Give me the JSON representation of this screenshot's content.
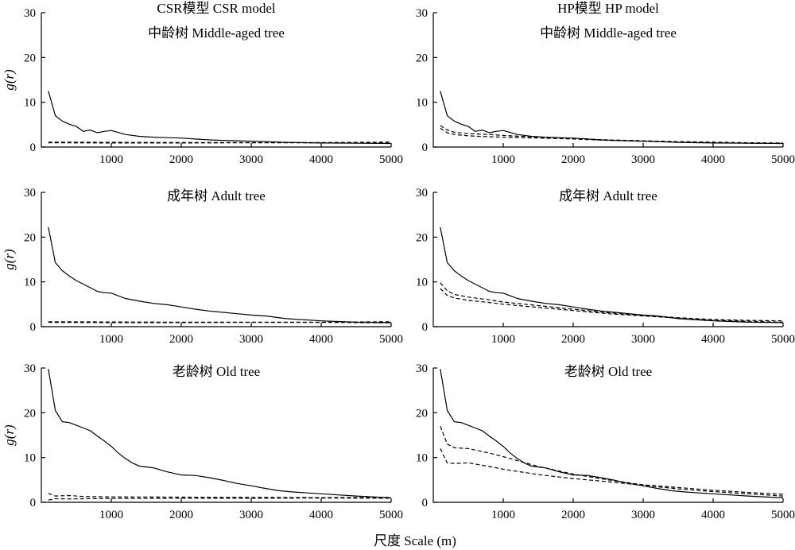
{
  "figure": {
    "xlabel": "尺度 Scale (m)"
  },
  "chart_data": [
    {
      "type": "line",
      "title": "CSR模型 CSR model",
      "subtitle": "中龄树 Middle-aged tree",
      "ylabel": "g(r)",
      "xlim": [
        0,
        5000
      ],
      "ylim": [
        0,
        30
      ],
      "xticks": [
        1000,
        2000,
        3000,
        4000,
        5000
      ],
      "yticks": [
        0,
        10,
        20,
        30
      ],
      "series": [
        {
          "style": "solid",
          "x": [
            100,
            200,
            300,
            400,
            500,
            600,
            700,
            800,
            900,
            1000,
            1200,
            1400,
            1600,
            1800,
            2000,
            2200,
            2400,
            2600,
            2800,
            3000,
            3200,
            3500,
            4000,
            4500,
            5000
          ],
          "y": [
            12.5,
            7,
            5.8,
            5.1,
            4.6,
            3.5,
            3.8,
            3.2,
            3.5,
            3.7,
            2.8,
            2.4,
            2.2,
            2.1,
            2.0,
            1.8,
            1.6,
            1.5,
            1.4,
            1.3,
            1.2,
            1.05,
            0.9,
            0.85,
            0.8
          ]
        },
        {
          "style": "dashed",
          "x": [
            100,
            1000,
            2000,
            3000,
            4000,
            5000
          ],
          "y": [
            1.1,
            1.05,
            1.0,
            1.0,
            1.0,
            1.1
          ]
        },
        {
          "style": "dashed",
          "x": [
            100,
            1000,
            2000,
            3000,
            4000,
            5000
          ],
          "y": [
            0.95,
            0.9,
            0.9,
            0.95,
            0.95,
            0.85
          ]
        }
      ]
    },
    {
      "type": "line",
      "title": "HP模型 HP model",
      "subtitle": "中龄树 Middle-aged tree",
      "ylabel": "",
      "xlim": [
        0,
        5000
      ],
      "ylim": [
        0,
        30
      ],
      "xticks": [
        1000,
        2000,
        3000,
        4000,
        5000
      ],
      "yticks": [
        0,
        10,
        20,
        30
      ],
      "series": [
        {
          "style": "solid",
          "x": [
            100,
            200,
            300,
            400,
            500,
            600,
            700,
            800,
            900,
            1000,
            1200,
            1400,
            1600,
            1800,
            2000,
            2200,
            2400,
            2600,
            2800,
            3000,
            3200,
            3500,
            4000,
            4500,
            5000
          ],
          "y": [
            12.5,
            7,
            5.8,
            5.1,
            4.6,
            3.5,
            3.8,
            3.2,
            3.5,
            3.7,
            2.8,
            2.4,
            2.2,
            2.1,
            2.0,
            1.8,
            1.6,
            1.5,
            1.4,
            1.3,
            1.2,
            1.05,
            0.9,
            0.85,
            0.8
          ]
        },
        {
          "style": "dashed",
          "x": [
            100,
            200,
            300,
            500,
            800,
            1000,
            1500,
            2000,
            2500,
            3000,
            3500,
            4000,
            4500,
            5000
          ],
          "y": [
            4.8,
            3.8,
            3.3,
            3.0,
            2.8,
            2.6,
            2.2,
            1.9,
            1.6,
            1.4,
            1.2,
            1.1,
            0.95,
            0.9
          ]
        },
        {
          "style": "dashed",
          "x": [
            100,
            200,
            300,
            500,
            800,
            1000,
            1500,
            2000,
            2500,
            3000,
            3500,
            4000,
            4500,
            5000
          ],
          "y": [
            4.2,
            3.2,
            2.8,
            2.5,
            2.3,
            2.2,
            2.0,
            1.8,
            1.5,
            1.3,
            1.1,
            1.0,
            0.85,
            0.8
          ]
        }
      ]
    },
    {
      "type": "line",
      "title": "",
      "subtitle": "成年树 Adult tree",
      "ylabel": "g(r)",
      "xlim": [
        0,
        5000
      ],
      "ylim": [
        0,
        30
      ],
      "xticks": [
        1000,
        2000,
        3000,
        4000,
        5000
      ],
      "yticks": [
        0,
        10,
        20,
        30
      ],
      "series": [
        {
          "style": "solid",
          "x": [
            100,
            200,
            300,
            400,
            500,
            600,
            700,
            800,
            900,
            1000,
            1200,
            1400,
            1600,
            1800,
            2000,
            2200,
            2400,
            2600,
            2800,
            3000,
            3200,
            3500,
            4000,
            4500,
            5000
          ],
          "y": [
            22.2,
            14.3,
            12.5,
            11.3,
            10.3,
            9.5,
            8.7,
            7.9,
            7.6,
            7.5,
            6.3,
            5.7,
            5.2,
            4.9,
            4.4,
            3.9,
            3.5,
            3.2,
            2.9,
            2.6,
            2.4,
            1.8,
            1.3,
            1.0,
            0.9
          ]
        },
        {
          "style": "dashed",
          "x": [
            100,
            1000,
            2000,
            3000,
            4000,
            5000
          ],
          "y": [
            1.1,
            1.05,
            1.0,
            1.0,
            1.0,
            1.1
          ]
        },
        {
          "style": "dashed",
          "x": [
            100,
            1000,
            2000,
            3000,
            4000,
            5000
          ],
          "y": [
            0.95,
            0.9,
            0.9,
            0.95,
            0.95,
            0.85
          ]
        }
      ]
    },
    {
      "type": "line",
      "title": "",
      "subtitle": "成年树 Adult tree",
      "ylabel": "",
      "xlim": [
        0,
        5000
      ],
      "ylim": [
        0,
        30
      ],
      "xticks": [
        1000,
        2000,
        3000,
        4000,
        5000
      ],
      "yticks": [
        0,
        10,
        20,
        30
      ],
      "series": [
        {
          "style": "solid",
          "x": [
            100,
            200,
            300,
            400,
            500,
            600,
            700,
            800,
            900,
            1000,
            1200,
            1400,
            1600,
            1800,
            2000,
            2200,
            2400,
            2600,
            2800,
            3000,
            3200,
            3500,
            4000,
            4500,
            5000
          ],
          "y": [
            22.2,
            14.3,
            12.5,
            11.3,
            10.3,
            9.5,
            8.7,
            7.9,
            7.6,
            7.5,
            6.3,
            5.7,
            5.2,
            4.9,
            4.4,
            3.9,
            3.5,
            3.2,
            2.9,
            2.6,
            2.4,
            1.8,
            1.3,
            1.0,
            0.9
          ]
        },
        {
          "style": "dashed",
          "x": [
            100,
            200,
            300,
            500,
            800,
            1000,
            1500,
            2000,
            2500,
            3000,
            3500,
            4000,
            4500,
            5000
          ],
          "y": [
            9.8,
            8.0,
            7.2,
            6.6,
            6.0,
            5.5,
            4.7,
            3.9,
            3.1,
            2.5,
            2.0,
            1.6,
            1.4,
            1.3
          ]
        },
        {
          "style": "dashed",
          "x": [
            100,
            200,
            300,
            500,
            800,
            1000,
            1500,
            2000,
            2500,
            3000,
            3500,
            4000,
            4500,
            5000
          ],
          "y": [
            8.5,
            7.0,
            6.4,
            5.9,
            5.4,
            5.0,
            4.3,
            3.6,
            2.9,
            2.4,
            1.9,
            1.4,
            1.2,
            1.0
          ]
        }
      ]
    },
    {
      "type": "line",
      "title": "",
      "subtitle": "老龄树 Old tree",
      "ylabel": "g(r)",
      "xlim": [
        0,
        5000
      ],
      "ylim": [
        0,
        30
      ],
      "xticks": [
        1000,
        2000,
        3000,
        4000,
        5000
      ],
      "yticks": [
        0,
        10,
        20,
        30
      ],
      "series": [
        {
          "style": "solid",
          "x": [
            100,
            200,
            300,
            400,
            500,
            600,
            700,
            800,
            900,
            1000,
            1100,
            1200,
            1300,
            1400,
            1500,
            1600,
            1800,
            2000,
            2200,
            2400,
            2600,
            2800,
            3000,
            3200,
            3400,
            3600,
            3800,
            4000,
            4500,
            5000
          ],
          "y": [
            29.8,
            20.5,
            18.0,
            17.8,
            17.2,
            16.6,
            16.0,
            14.8,
            13.7,
            12.5,
            11.0,
            9.8,
            8.8,
            8.1,
            7.9,
            7.7,
            6.8,
            6.1,
            6.0,
            5.5,
            4.9,
            4.2,
            3.7,
            3.1,
            2.6,
            2.3,
            2.1,
            1.9,
            1.4,
            1.0
          ]
        },
        {
          "style": "dashed",
          "x": [
            100,
            200,
            400,
            600,
            1000,
            2000,
            3000,
            4000,
            5000
          ],
          "y": [
            2.0,
            1.4,
            1.5,
            1.3,
            1.2,
            1.15,
            1.1,
            1.05,
            1.1
          ]
        },
        {
          "style": "dashed",
          "x": [
            100,
            200,
            400,
            600,
            1000,
            2000,
            3000,
            4000,
            5000
          ],
          "y": [
            0.5,
            0.8,
            0.75,
            0.8,
            0.85,
            0.9,
            0.9,
            0.95,
            0.9
          ]
        }
      ]
    },
    {
      "type": "line",
      "title": "",
      "subtitle": "老龄树 Old tree",
      "ylabel": "",
      "xlim": [
        0,
        5000
      ],
      "ylim": [
        0,
        30
      ],
      "xticks": [
        1000,
        2000,
        3000,
        4000,
        5000
      ],
      "yticks": [
        0,
        10,
        20,
        30
      ],
      "series": [
        {
          "style": "solid",
          "x": [
            100,
            200,
            300,
            400,
            500,
            600,
            700,
            800,
            900,
            1000,
            1100,
            1200,
            1300,
            1400,
            1500,
            1600,
            1800,
            2000,
            2200,
            2400,
            2600,
            2800,
            3000,
            3200,
            3400,
            3600,
            3800,
            4000,
            4500,
            5000
          ],
          "y": [
            29.8,
            20.5,
            18.0,
            17.8,
            17.2,
            16.6,
            16.0,
            14.8,
            13.7,
            12.5,
            11.0,
            9.8,
            8.8,
            8.1,
            7.9,
            7.7,
            6.8,
            6.1,
            6.0,
            5.5,
            4.9,
            4.2,
            3.7,
            3.1,
            2.6,
            2.3,
            2.1,
            1.9,
            1.4,
            1.0
          ]
        },
        {
          "style": "dashed",
          "x": [
            100,
            200,
            300,
            500,
            800,
            1000,
            1500,
            2000,
            2500,
            3000,
            3500,
            4000,
            4500,
            5000
          ],
          "y": [
            17.0,
            13.0,
            12.2,
            12.0,
            11.0,
            10.2,
            8.0,
            6.3,
            5.0,
            3.9,
            3.3,
            2.7,
            2.2,
            1.8
          ]
        },
        {
          "style": "dashed",
          "x": [
            100,
            200,
            300,
            500,
            800,
            1000,
            1500,
            2000,
            2500,
            3000,
            3500,
            4000,
            4500,
            5000
          ],
          "y": [
            12.0,
            8.8,
            8.7,
            8.8,
            8.0,
            7.4,
            6.2,
            5.3,
            4.6,
            3.8,
            3.0,
            2.4,
            1.9,
            1.4
          ]
        }
      ]
    }
  ]
}
